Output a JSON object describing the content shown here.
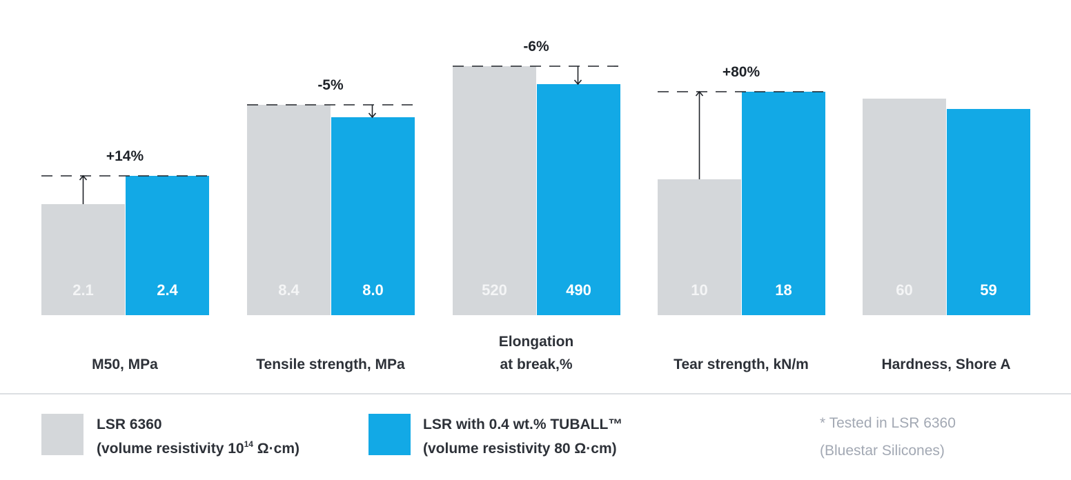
{
  "colors": {
    "base": "#d4d7da",
    "tuball": "#12a9e6",
    "text": "#2d3138",
    "note": "#a2a8b3"
  },
  "chart_data": {
    "type": "bar",
    "note": "each category drawn on its own scale",
    "categories": [
      "M50, MPa",
      "Tensile strength, MPa",
      "Elongation at break,%",
      "Tear strength, kN/m",
      "Hardness, Shore A"
    ],
    "category_lines": [
      [
        "M50, MPa"
      ],
      [
        "Tensile strength, MPa"
      ],
      [
        "Elongation",
        "at break,%"
      ],
      [
        "Tear strength, kN/m"
      ],
      [
        "Hardness, Shore A"
      ]
    ],
    "series": [
      {
        "name": "LSR 6360",
        "values": [
          2.1,
          8.4,
          520,
          10,
          60
        ],
        "labels": [
          "2.1",
          "8.4",
          "520",
          "10",
          "60"
        ]
      },
      {
        "name": "LSR with 0.4 wt.% TUBALL™",
        "values": [
          2.4,
          8.0,
          490,
          18,
          59
        ],
        "labels": [
          "2.4",
          "8.0",
          "490",
          "18",
          "59"
        ]
      }
    ],
    "changes": [
      "+14%",
      "-5%",
      "-6%",
      "+80%",
      ""
    ]
  },
  "legend": [
    {
      "line1": "LSR 6360",
      "line2_prefix": "(volume resistivity 10",
      "line2_sup": "14",
      "line2_suffix": " Ω·cm)"
    },
    {
      "line1": "LSR with 0.4 wt.% TUBALL™",
      "line2_prefix": "(volume resistivity 80 Ω·cm)",
      "line2_sup": "",
      "line2_suffix": ""
    }
  ],
  "footnote": {
    "line1": "* Tested in LSR 6360",
    "line2": "(Bluestar Silicones)"
  }
}
